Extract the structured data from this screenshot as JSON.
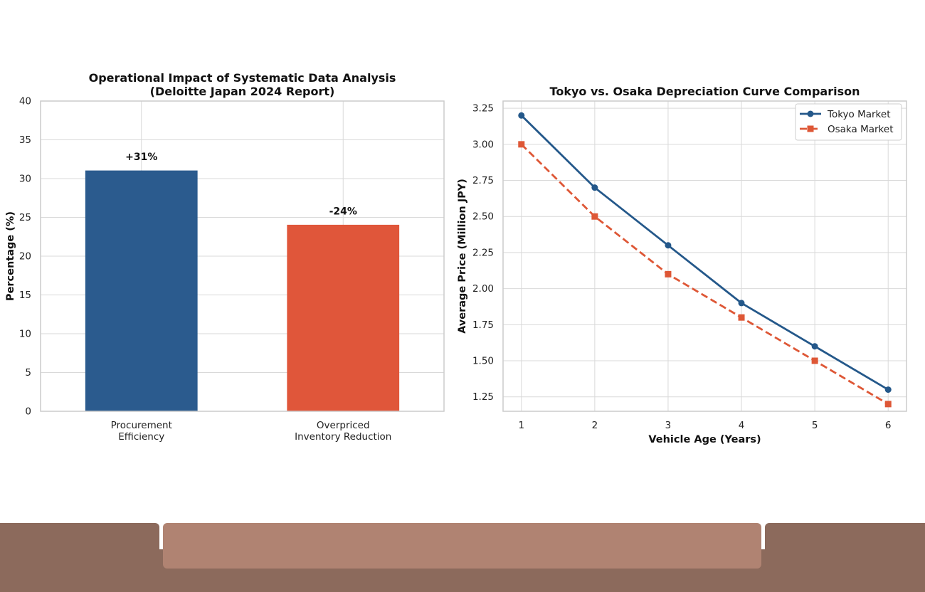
{
  "chart_data": [
    {
      "type": "bar",
      "title": "Operational Impact of Systematic Data Analysis\n(Deloitte Japan 2024 Report)",
      "xlabel": "",
      "ylabel": "Percentage (%)",
      "ylim": [
        0,
        40
      ],
      "yticks": [
        0,
        5,
        10,
        15,
        20,
        25,
        30,
        35,
        40
      ],
      "grid": true,
      "categories": [
        "Procurement\nEfficiency",
        "Overpriced\nInventory Reduction"
      ],
      "values": [
        31,
        24
      ],
      "data_labels": [
        "+31%",
        "-24%"
      ],
      "colors": [
        "#2b5b8e",
        "#e0563a"
      ]
    },
    {
      "type": "line",
      "title": "Tokyo vs. Osaka Depreciation Curve Comparison",
      "xlabel": "Vehicle Age (Years)",
      "ylabel": "Average Price (Million JPY)",
      "xlim": [
        0.75,
        6.25
      ],
      "ylim": [
        1.15,
        3.3
      ],
      "xticks": [
        1,
        2,
        3,
        4,
        5,
        6
      ],
      "yticks": [
        "1.25",
        "1.50",
        "1.75",
        "2.00",
        "2.25",
        "2.50",
        "2.75",
        "3.00",
        "3.25"
      ],
      "grid": true,
      "legend": "top-right",
      "x": [
        1,
        2,
        3,
        4,
        5,
        6
      ],
      "series": [
        {
          "name": "Tokyo Market",
          "values": [
            3.2,
            2.7,
            2.3,
            1.9,
            1.6,
            1.3
          ],
          "color": "#24588a",
          "style": "solid",
          "marker": "circle"
        },
        {
          "name": "Osaka Market",
          "values": [
            3.0,
            2.5,
            2.1,
            1.8,
            1.5,
            1.2
          ],
          "color": "#de5736",
          "style": "dashed",
          "marker": "square"
        }
      ]
    }
  ],
  "footer": {
    "left_color": "#8c6a5c",
    "center_color": "#b08372",
    "right_color": "#8c6a5c"
  }
}
